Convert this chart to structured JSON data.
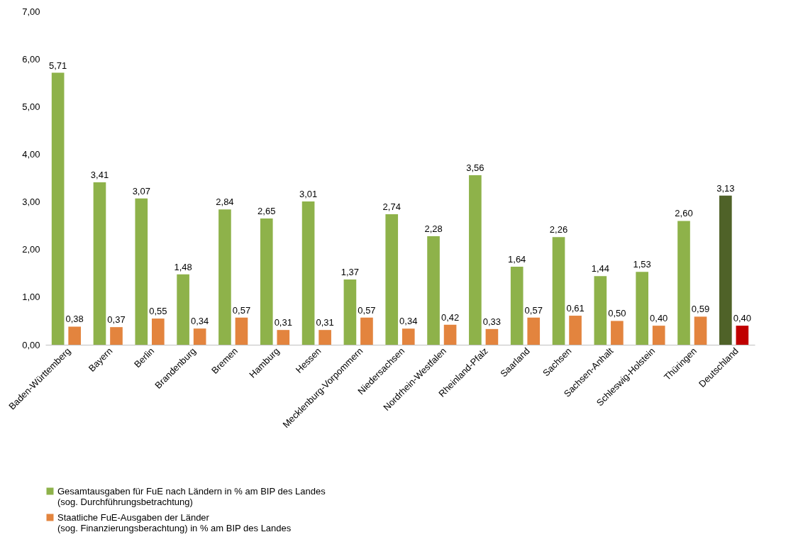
{
  "chart_data": {
    "type": "bar",
    "categories": [
      "Baden-Württemberg",
      "Bayern",
      "Berlin",
      "Brandenburg",
      "Bremen",
      "Hamburg",
      "Hessen",
      "Mecklenburg-Vorpommern",
      "Niedersachsen",
      "Nordrhein-Westfalen",
      "Rheinland-Pfalz",
      "Saarland",
      "Sachsen",
      "Sachsen-Anhalt",
      "Schleswig-Holstein",
      "Thüringen",
      "Deutschland"
    ],
    "series": [
      {
        "name": "Gesamtausgaben für FuE nach Ländern in % am BIP des Landes\n(sog. Durchführungsbetrachtung)",
        "color": "#8eb24a",
        "colors": [
          "#8eb24a",
          "#8eb24a",
          "#8eb24a",
          "#8eb24a",
          "#8eb24a",
          "#8eb24a",
          "#8eb24a",
          "#8eb24a",
          "#8eb24a",
          "#8eb24a",
          "#8eb24a",
          "#8eb24a",
          "#8eb24a",
          "#8eb24a",
          "#8eb24a",
          "#8eb24a",
          "#4f6228"
        ],
        "values": [
          5.71,
          3.41,
          3.07,
          1.48,
          2.84,
          2.65,
          3.01,
          1.37,
          2.74,
          2.28,
          3.56,
          1.64,
          2.26,
          1.44,
          1.53,
          2.6,
          3.13
        ],
        "value_labels": [
          "5,71",
          "3,41",
          "3,07",
          "1,48",
          "2,84",
          "2,65",
          "3,01",
          "1,37",
          "2,74",
          "2,28",
          "3,56",
          "1,64",
          "2,26",
          "1,44",
          "1,53",
          "2,60",
          "3,13"
        ]
      },
      {
        "name": "Staatliche FuE-Ausgaben der Länder\n(sog. Finanzierungsberachtung) in % am BIP des Landes",
        "color": "#e3843e",
        "colors": [
          "#e3843e",
          "#e3843e",
          "#e3843e",
          "#e3843e",
          "#e3843e",
          "#e3843e",
          "#e3843e",
          "#e3843e",
          "#e3843e",
          "#e3843e",
          "#e3843e",
          "#e3843e",
          "#e3843e",
          "#e3843e",
          "#e3843e",
          "#e3843e",
          "#c00000"
        ],
        "values": [
          0.38,
          0.37,
          0.55,
          0.34,
          0.57,
          0.31,
          0.31,
          0.57,
          0.34,
          0.42,
          0.33,
          0.57,
          0.61,
          0.5,
          0.4,
          0.59,
          0.4
        ],
        "value_labels": [
          "0,38",
          "0,37",
          "0,55",
          "0,34",
          "0,57",
          "0,31",
          "0,31",
          "0,57",
          "0,34",
          "0,42",
          "0,33",
          "0,57",
          "0,61",
          "0,50",
          "0,40",
          "0,59",
          "0,40"
        ]
      }
    ],
    "ylim": [
      0,
      7
    ],
    "yticks": [
      {
        "value": 0,
        "label": "0,00"
      },
      {
        "value": 1,
        "label": "1,00"
      },
      {
        "value": 2,
        "label": "2,00"
      },
      {
        "value": 3,
        "label": "3,00"
      },
      {
        "value": 4,
        "label": "4,00"
      },
      {
        "value": 5,
        "label": "5,00"
      },
      {
        "value": 6,
        "label": "6,00"
      },
      {
        "value": 7,
        "label": "7,00"
      }
    ],
    "grid": false,
    "legend": "bottom"
  }
}
